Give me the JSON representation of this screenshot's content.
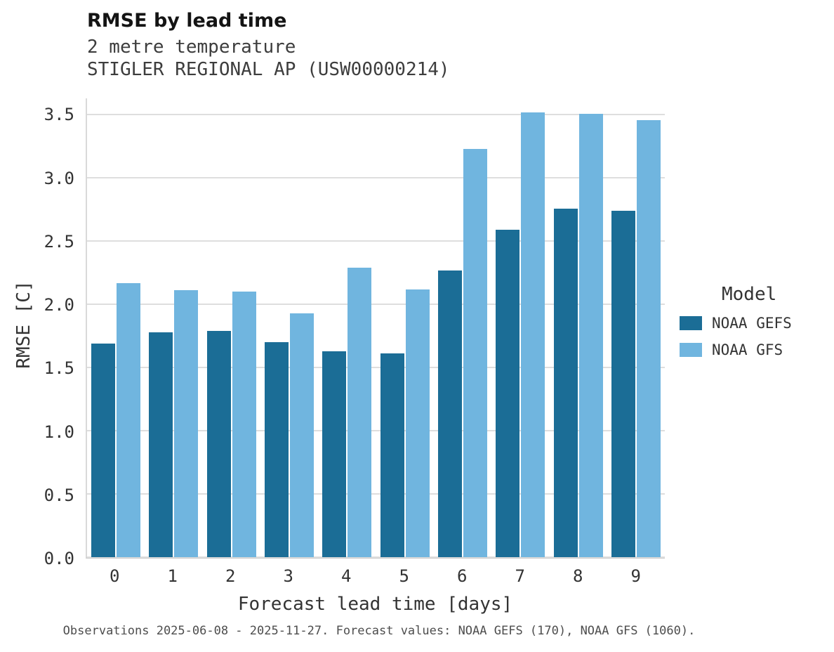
{
  "title": "RMSE by lead time",
  "subtitle1": "2 metre temperature",
  "subtitle2": "STIGLER REGIONAL AP (USW00000214)",
  "footer": "Observations 2025-06-08 - 2025-11-27. Forecast values: NOAA GEFS (170), NOAA GFS (1060).",
  "legend": {
    "title": "Model",
    "entries": [
      {
        "label": "NOAA GEFS",
        "color": "#1b6d96"
      },
      {
        "label": "NOAA GFS",
        "color": "#70b5df"
      }
    ]
  },
  "chart_data": {
    "type": "bar",
    "title": "RMSE by lead time",
    "subtitle": "2 metre temperature — STIGLER REGIONAL AP (USW00000214)",
    "xlabel": "Forecast lead time [days]",
    "ylabel": "RMSE [C]",
    "categories": [
      "0",
      "1",
      "2",
      "3",
      "4",
      "5",
      "6",
      "7",
      "8",
      "9"
    ],
    "series": [
      {
        "name": "NOAA GEFS",
        "color": "#1b6d96",
        "values": [
          1.69,
          1.78,
          1.79,
          1.7,
          1.63,
          1.61,
          2.27,
          2.59,
          2.76,
          2.74
        ]
      },
      {
        "name": "NOAA GFS",
        "color": "#70b5df",
        "values": [
          2.17,
          2.11,
          2.1,
          1.93,
          2.29,
          2.12,
          3.23,
          3.52,
          3.51,
          3.46
        ]
      }
    ],
    "ylim": [
      0,
      3.63
    ],
    "yticks": [
      0.0,
      0.5,
      1.0,
      1.5,
      2.0,
      2.5,
      3.0,
      3.5
    ],
    "grid": true,
    "legend_position": "right"
  }
}
